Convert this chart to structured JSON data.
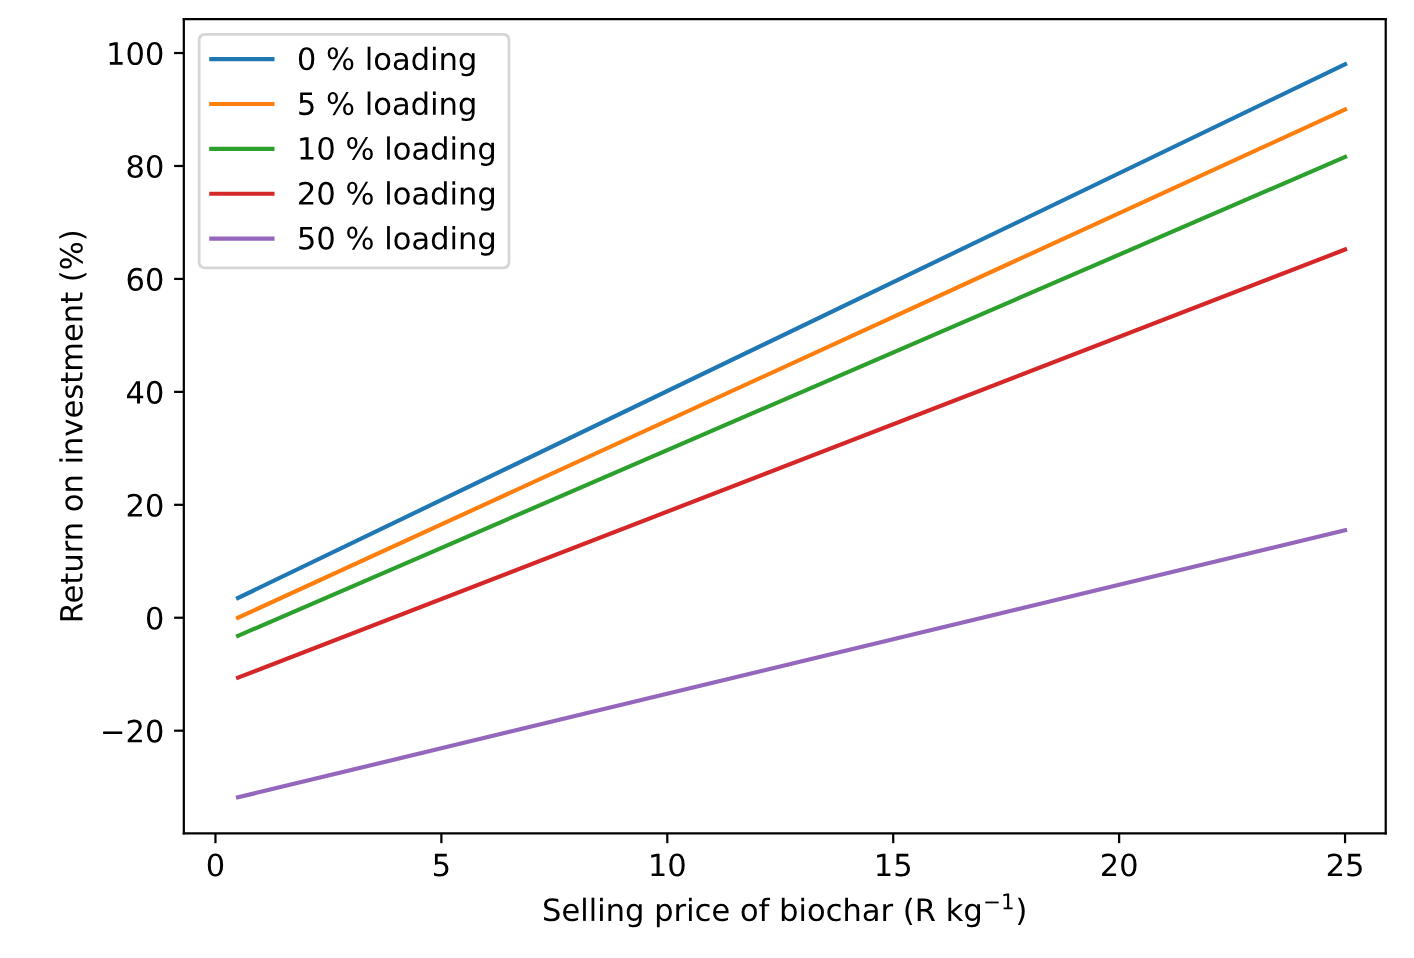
{
  "chart_data": {
    "type": "line",
    "xlabel": "Selling price of biochar (R kg$^{−1}$)",
    "ylabel": "Return on investment (%)",
    "x": [
      0.5,
      25
    ],
    "series": [
      {
        "name": "0 % loading",
        "color": "#1f77b4",
        "values": [
          3.5,
          98
        ]
      },
      {
        "name": "5 % loading",
        "color": "#ff7f0e",
        "values": [
          0,
          90
        ]
      },
      {
        "name": "10 % loading",
        "color": "#2ca02c",
        "values": [
          -3.2,
          81.6
        ]
      },
      {
        "name": "20 % loading",
        "color": "#d62728",
        "values": [
          -10.6,
          65.2
        ]
      },
      {
        "name": "50 % loading",
        "color": "#9467bd",
        "values": [
          -31.8,
          15.5
        ]
      }
    ],
    "xlim": [
      -0.7,
      25.9
    ],
    "ylim": [
      -38.2,
      106
    ],
    "xticks": [
      0,
      5,
      10,
      15,
      20,
      25
    ],
    "yticks": [
      {
        "value": -20,
        "label": "−20"
      },
      0,
      20,
      40,
      60,
      80,
      100
    ],
    "legend": "top left",
    "grid": false,
    "marker": "none",
    "line_style": "solid"
  }
}
